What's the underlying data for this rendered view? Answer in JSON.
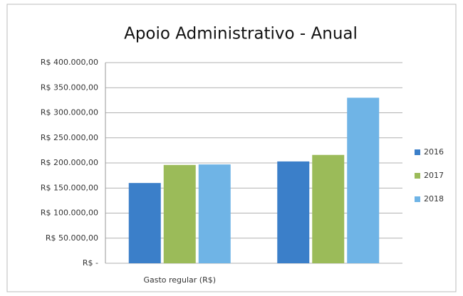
{
  "chart_data": {
    "type": "bar",
    "title": "Apoio Administrativo - Anual",
    "categories": [
      "Gasto regular (R$)",
      null
    ],
    "series": [
      {
        "name": "2016",
        "color": "#3b7fc9",
        "values": [
          160000,
          203000
        ]
      },
      {
        "name": "2017",
        "color": "#9bbb59",
        "values": [
          196000,
          216000
        ]
      },
      {
        "name": "2018",
        "color": "#6fb4e6",
        "values": [
          197000,
          330000
        ]
      }
    ],
    "ylim": [
      0,
      400000
    ],
    "yticks": [
      {
        "value": 0,
        "label": "R$ -"
      },
      {
        "value": 50000,
        "label": "R$ 50.000,00"
      },
      {
        "value": 100000,
        "label": "R$ 100.000,00"
      },
      {
        "value": 150000,
        "label": "R$ 150.000,00"
      },
      {
        "value": 200000,
        "label": "R$ 200.000,00"
      },
      {
        "value": 250000,
        "label": "R$ 250.000,00"
      },
      {
        "value": 300000,
        "label": "R$ 300.000,00"
      },
      {
        "value": 350000,
        "label": "R$ 350.000,00"
      },
      {
        "value": 400000,
        "label": "R$ 400.000,00"
      }
    ],
    "grid": true,
    "legend": "right"
  }
}
